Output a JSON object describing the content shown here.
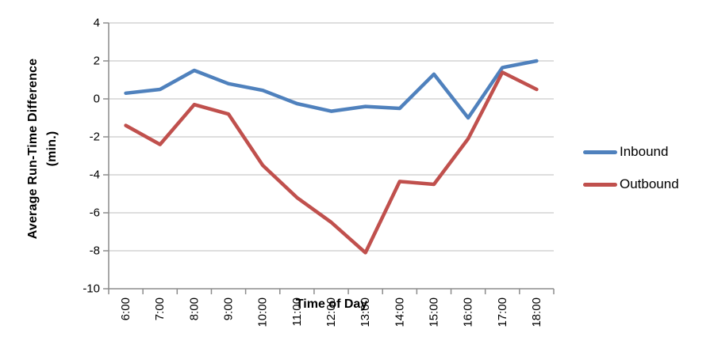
{
  "chart_data": {
    "type": "line",
    "title": "",
    "xlabel": "Time of Day",
    "ylabel": "Average Run-Time Difference (min.)",
    "ylabel_lines": [
      "Average Run-Time Difference",
      "(min.)"
    ],
    "categories": [
      "6:00",
      "7:00",
      "8:00",
      "9:00",
      "10:00",
      "11:00",
      "12:00",
      "13:00",
      "14:00",
      "15:00",
      "16:00",
      "17:00",
      "18:00"
    ],
    "series": [
      {
        "name": "Inbound",
        "color": "#4F81BD",
        "values": [
          0.3,
          0.5,
          1.5,
          0.8,
          0.45,
          -0.25,
          -0.65,
          -0.4,
          -0.5,
          1.3,
          -1.0,
          1.65,
          2.0
        ]
      },
      {
        "name": "Outbound",
        "color": "#C0504D",
        "values": [
          -1.4,
          -2.4,
          -0.3,
          -0.8,
          -3.5,
          -5.2,
          -6.5,
          -8.1,
          -4.35,
          -4.5,
          -2.1,
          1.4,
          0.5
        ]
      }
    ],
    "y_ticks": [
      4,
      2,
      0,
      -2,
      -4,
      -6,
      -8,
      -10
    ],
    "ylim": [
      -10,
      4
    ],
    "grid": true,
    "legend_position": "right",
    "colors": {
      "gridline": "#C9C9C9",
      "axis": "#8C8C8C",
      "text": "#000000",
      "background": "#FFFFFF"
    }
  }
}
